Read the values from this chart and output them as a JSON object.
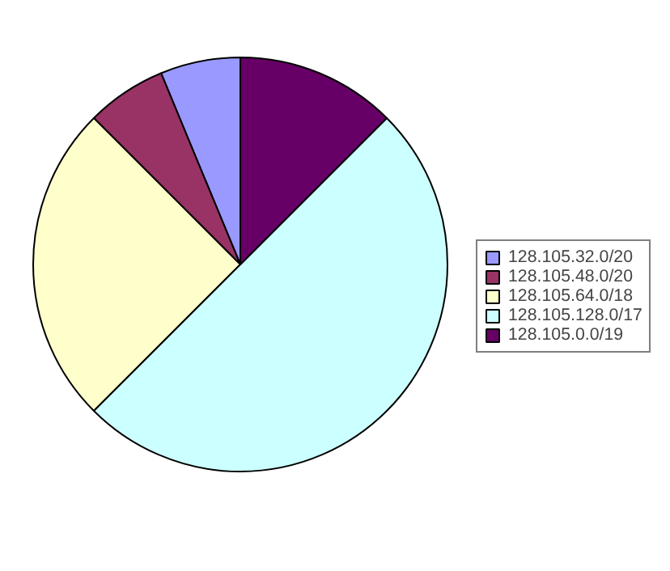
{
  "chart_data": {
    "type": "pie",
    "categories": [
      "128.105.32.0/20",
      "128.105.48.0/20",
      "128.105.64.0/18",
      "128.105.128.0/17",
      "128.105.0.0/19"
    ],
    "values": [
      6.25,
      6.25,
      25,
      50,
      12.5
    ],
    "colors": [
      "#9999ff",
      "#993366",
      "#ffffcc",
      "#ccffff",
      "#660066"
    ],
    "legend": "right"
  }
}
